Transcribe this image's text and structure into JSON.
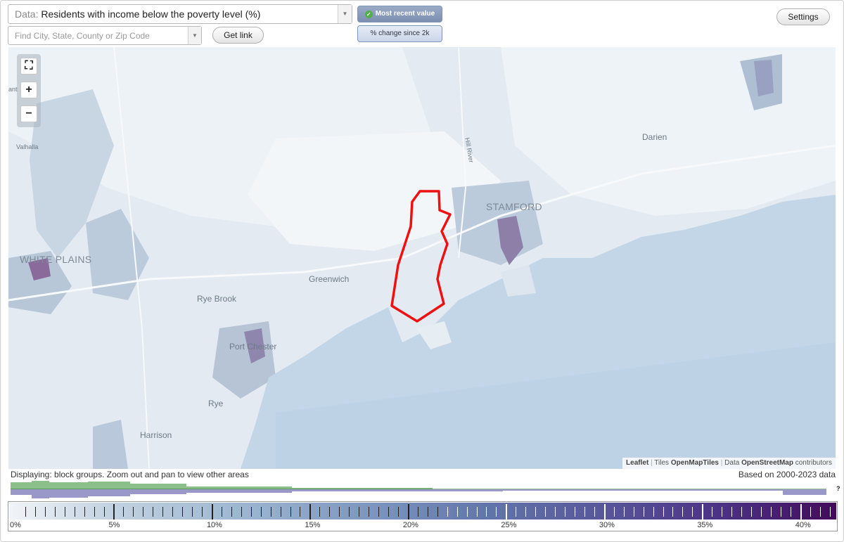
{
  "controls": {
    "data_prefix": "Data:",
    "data_value": "Residents with income below the poverty level (%)",
    "search_placeholder": "Find City, State, County or Zip Code",
    "get_link_label": "Get link",
    "most_recent_label": "Most recent value",
    "change_label": "% change since 2k",
    "settings_label": "Settings"
  },
  "map": {
    "places": {
      "white_plains": "WHITE PLAINS",
      "stamford": "STAMFORD",
      "greenwich": "Greenwich",
      "rye_brook": "Rye Brook",
      "port_chester": "Port Chester",
      "rye": "Rye",
      "harrison": "Harrison",
      "darien": "Darien",
      "valhalla": "Valhalla",
      "partial_left": "ant",
      "road_label": "Hill River"
    },
    "selected_outline_color": "#ee1111",
    "water_color": "#c3d6e8",
    "attribution": {
      "leaflet": "Leaflet",
      "tiles_prefix": "Tiles",
      "tiles": "OpenMapTiles",
      "data_prefix": "Data",
      "data": "OpenStreetMap",
      "suffix": "contributors"
    }
  },
  "status": {
    "displaying": "Displaying: block groups. Zoom out and pan to view other areas",
    "based_on": "Based on 2000-2023 data",
    "help": "?"
  },
  "legend": {
    "labels": [
      "0%",
      "5%",
      "10%",
      "15%",
      "20%",
      "25%",
      "30%",
      "35%",
      "40%"
    ],
    "max_value": 41.8,
    "low_color": "#f1f4f8",
    "high_color": "#420b5c",
    "histogram_colors": {
      "upper": "#8cc08a",
      "lower": "#9a97c9"
    }
  }
}
